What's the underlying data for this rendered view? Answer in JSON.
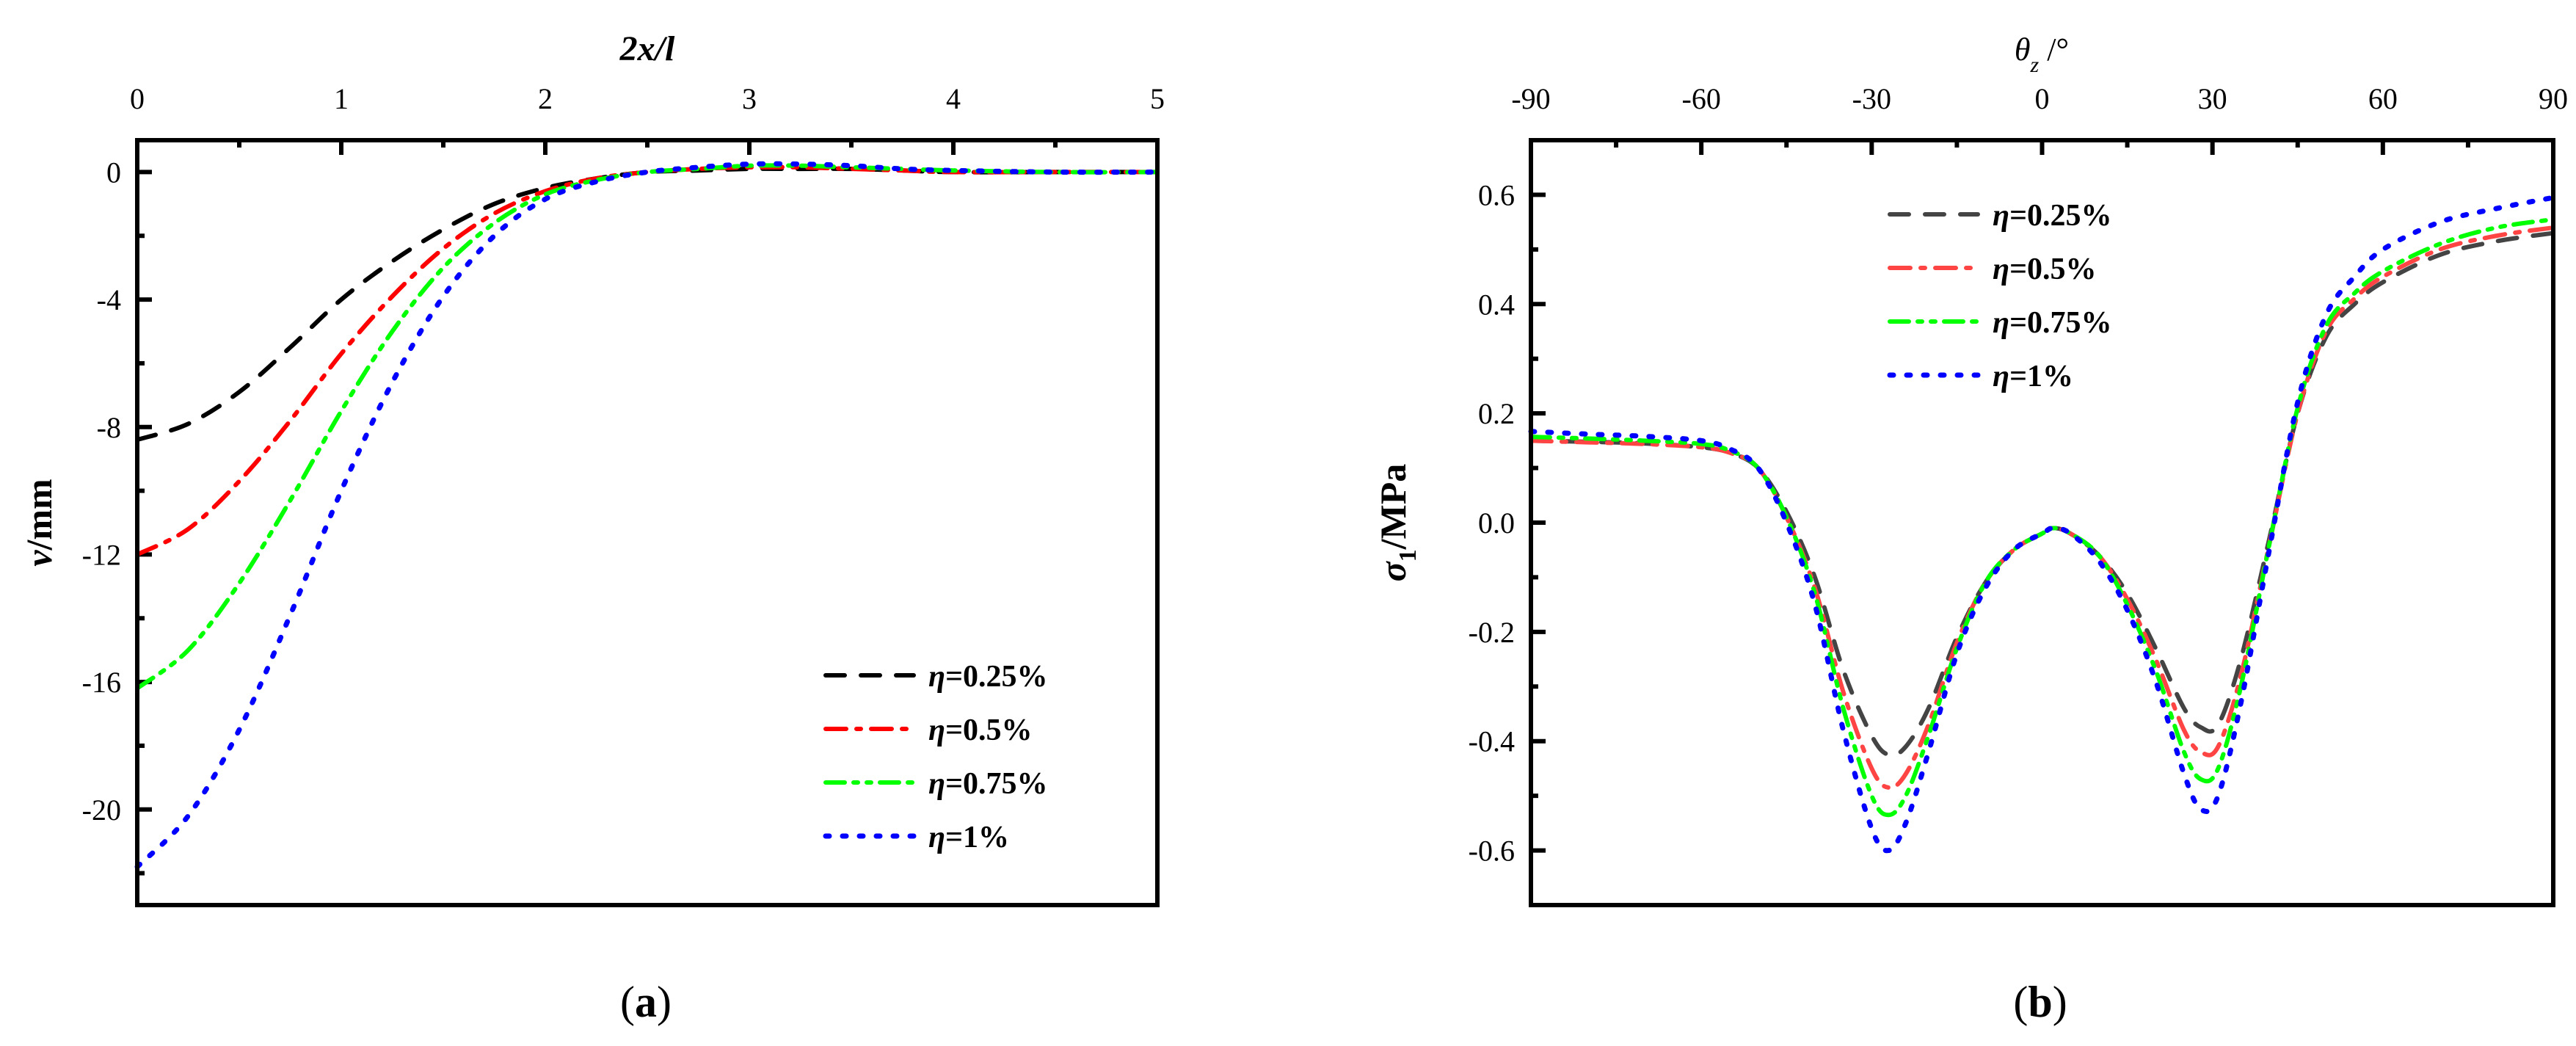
{
  "figure": {
    "panel_a_label": "a",
    "panel_b_label": "b"
  },
  "chart_data": [
    {
      "type": "line",
      "panel": "(a)",
      "title": "",
      "xlabel": "2x/l",
      "xlabel_position": "top",
      "ylabel": "v/mm",
      "xlim": [
        0,
        5
      ],
      "ylim": [
        -23,
        1
      ],
      "xticks": [
        0,
        1,
        2,
        3,
        4,
        5
      ],
      "yticks": [
        0,
        -4,
        -8,
        -12,
        -16,
        -20
      ],
      "grid": false,
      "legend_position": "lower right",
      "x": [
        0,
        0.25,
        0.5,
        0.75,
        1.0,
        1.25,
        1.5,
        1.75,
        2.0,
        2.25,
        2.5,
        2.75,
        3.0,
        3.25,
        3.5,
        3.75,
        4.0,
        4.5,
        5.0
      ],
      "series": [
        {
          "name": "η=0.25%",
          "color": "#000000",
          "dash": "dash",
          "values": [
            -8.4,
            -7.9,
            -6.9,
            -5.5,
            -4.0,
            -2.8,
            -1.8,
            -1.0,
            -0.5,
            -0.2,
            0.0,
            0.05,
            0.1,
            0.1,
            0.1,
            0.05,
            0.0,
            0.0,
            0.0
          ]
        },
        {
          "name": "η=0.5%",
          "color": "#ff0000",
          "dash": "dashdot",
          "values": [
            -12.0,
            -11.2,
            -9.7,
            -7.8,
            -5.7,
            -3.9,
            -2.4,
            -1.3,
            -0.6,
            -0.2,
            0.0,
            0.1,
            0.15,
            0.15,
            0.1,
            0.05,
            0.0,
            0.0,
            0.0
          ]
        },
        {
          "name": "η=0.75%",
          "color": "#00ff00",
          "dash": "dashdotdot",
          "values": [
            -16.2,
            -15.0,
            -12.9,
            -10.3,
            -7.5,
            -5.0,
            -3.0,
            -1.6,
            -0.7,
            -0.25,
            0.0,
            0.1,
            0.2,
            0.2,
            0.15,
            0.1,
            0.05,
            0.0,
            0.0
          ]
        },
        {
          "name": "η=1%",
          "color": "#0000ff",
          "dash": "dot",
          "values": [
            -21.8,
            -20.2,
            -17.5,
            -13.9,
            -10.0,
            -6.6,
            -3.9,
            -2.0,
            -0.85,
            -0.3,
            0.0,
            0.15,
            0.25,
            0.25,
            0.2,
            0.1,
            0.05,
            0.0,
            0.0
          ]
        }
      ]
    },
    {
      "type": "line",
      "panel": "(b)",
      "title": "",
      "xlabel": "θz/°",
      "xlabel_position": "top",
      "ylabel": "σ1/MPa",
      "xlim": [
        -90,
        90
      ],
      "ylim": [
        -0.7,
        0.7
      ],
      "xticks": [
        -90,
        -60,
        -30,
        0,
        30,
        60,
        90
      ],
      "yticks": [
        0.6,
        0.4,
        0.2,
        0.0,
        -0.2,
        -0.4,
        -0.6
      ],
      "grid": false,
      "legend_position": "upper left",
      "x": [
        -90,
        -80,
        -70,
        -60,
        -55,
        -50,
        -45,
        -40,
        -35,
        -30,
        -27,
        -24,
        -20,
        -15,
        -10,
        -5,
        0,
        2,
        5,
        10,
        15,
        20,
        25,
        28,
        31,
        35,
        40,
        45,
        50,
        55,
        60,
        70,
        80,
        90
      ],
      "series": [
        {
          "name": "η=0.25%",
          "color": "#444444",
          "dash": "dash",
          "values": [
            0.15,
            0.148,
            0.145,
            0.138,
            0.128,
            0.1,
            0.02,
            -0.1,
            -0.27,
            -0.39,
            -0.425,
            -0.41,
            -0.34,
            -0.21,
            -0.11,
            -0.05,
            -0.02,
            -0.01,
            -0.02,
            -0.06,
            -0.13,
            -0.23,
            -0.34,
            -0.375,
            -0.37,
            -0.25,
            -0.03,
            0.2,
            0.34,
            0.4,
            0.44,
            0.49,
            0.515,
            0.53
          ]
        },
        {
          "name": "η=0.5%",
          "color": "#ff4444",
          "dash": "dashdot",
          "values": [
            0.15,
            0.147,
            0.144,
            0.138,
            0.128,
            0.1,
            0.01,
            -0.12,
            -0.31,
            -0.45,
            -0.485,
            -0.46,
            -0.37,
            -0.22,
            -0.11,
            -0.05,
            -0.02,
            -0.01,
            -0.02,
            -0.06,
            -0.14,
            -0.25,
            -0.38,
            -0.42,
            -0.41,
            -0.28,
            -0.04,
            0.2,
            0.35,
            0.41,
            0.45,
            0.5,
            0.525,
            0.54
          ]
        },
        {
          "name": "η=0.75%",
          "color": "#00ff00",
          "dash": "dashdotdot",
          "values": [
            0.157,
            0.154,
            0.15,
            0.144,
            0.132,
            0.1,
            0.01,
            -0.13,
            -0.34,
            -0.5,
            -0.535,
            -0.5,
            -0.39,
            -0.23,
            -0.11,
            -0.05,
            -0.02,
            -0.01,
            -0.02,
            -0.06,
            -0.15,
            -0.27,
            -0.42,
            -0.47,
            -0.45,
            -0.3,
            -0.04,
            0.21,
            0.36,
            0.42,
            0.46,
            0.51,
            0.54,
            0.555
          ]
        },
        {
          "name": "η=1%",
          "color": "#0000ff",
          "dash": "dot",
          "values": [
            0.167,
            0.162,
            0.158,
            0.15,
            0.135,
            0.1,
            0.0,
            -0.15,
            -0.38,
            -0.56,
            -0.6,
            -0.55,
            -0.42,
            -0.24,
            -0.12,
            -0.05,
            -0.02,
            -0.01,
            -0.02,
            -0.07,
            -0.16,
            -0.29,
            -0.46,
            -0.525,
            -0.5,
            -0.33,
            -0.05,
            0.22,
            0.38,
            0.45,
            0.5,
            0.55,
            0.575,
            0.595
          ]
        }
      ]
    }
  ]
}
